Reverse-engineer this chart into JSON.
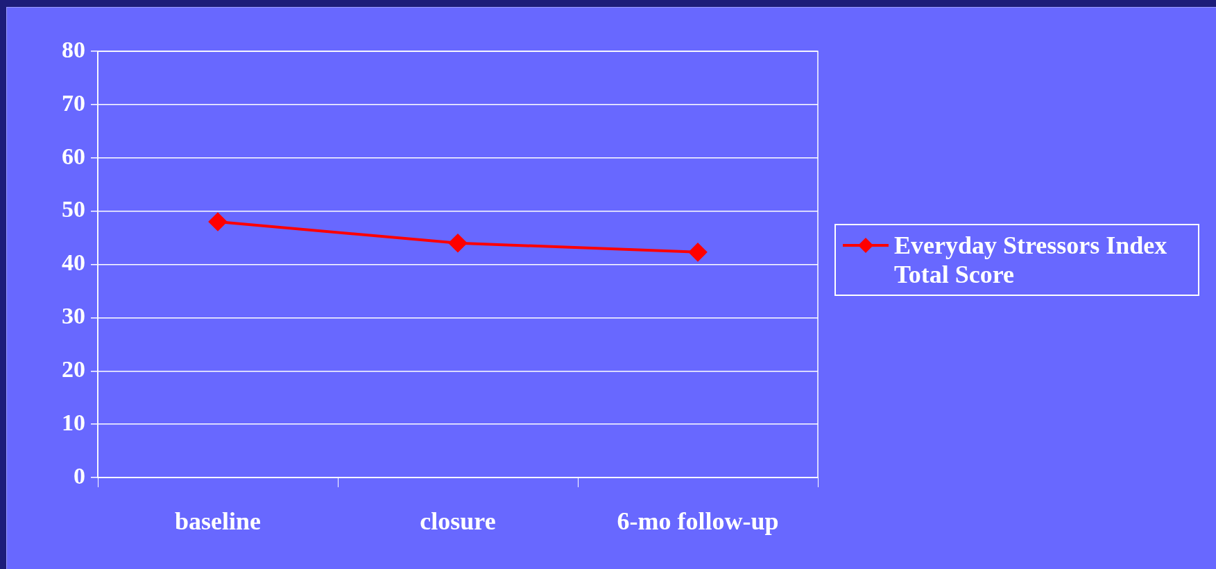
{
  "chart_data": {
    "type": "line",
    "categories": [
      "baseline",
      "closure",
      "6-mo follow-up"
    ],
    "series": [
      {
        "name": "Everyday Stressors Index Total Score",
        "color": "#ff0000",
        "values": [
          48,
          44,
          42.3
        ]
      }
    ],
    "ylim": [
      0,
      80
    ],
    "yticks": [
      0,
      10,
      20,
      30,
      40,
      50,
      60,
      70,
      80
    ],
    "grid": "y",
    "legend": "right",
    "marker": "diamond",
    "line_style": "solid"
  }
}
